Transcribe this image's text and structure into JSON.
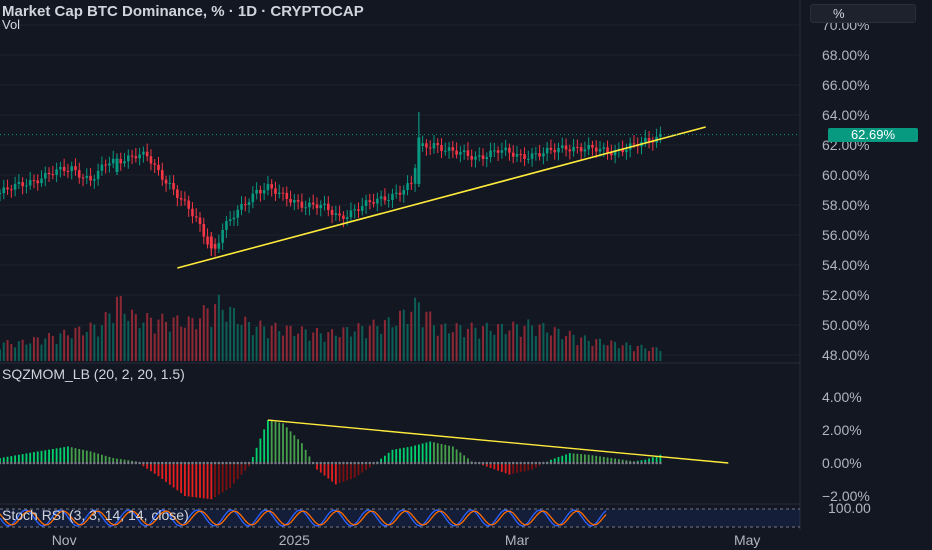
{
  "header": {
    "title": "Market Cap BTC Dominance, % · 1D · CRYPTOCAP",
    "volume_label": "Vol",
    "unit_button": "%"
  },
  "price_axis": {
    "ticks": [
      "70.00%",
      "68.00%",
      "66.00%",
      "64.00%",
      "62.00%",
      "60.00%",
      "58.00%",
      "56.00%",
      "54.00%",
      "52.00%",
      "50.00%",
      "48.00%"
    ],
    "last_price": "62.69%"
  },
  "indicators": {
    "sqzmom_label": "SQZMOM_LB (20, 2, 20, 1.5)",
    "sqzmom_ticks": [
      "4.00%",
      "2.00%",
      "0.00%",
      "−2.00%"
    ],
    "stoch_label": "Stoch RSI (3, 3, 14, 14, close)",
    "stoch_ticks": [
      "100.00"
    ]
  },
  "time_axis": {
    "ticks": [
      "Nov",
      "2025",
      "Mar",
      "May"
    ]
  },
  "colors": {
    "background": "#131722",
    "up": "#089981",
    "down": "#f23645",
    "trendline": "#ffeb3b",
    "momentum_up_strong": "#00e676",
    "momentum_up_weak": "#4caf50",
    "momentum_down_strong": "#ff1f1f",
    "momentum_down_weak": "#880e0e",
    "stoch_k": "#2962ff",
    "stoch_d": "#ff6d00"
  },
  "chart_data": {
    "type": "candlestick",
    "title": "Market Cap BTC Dominance, % · 1D · CRYPTOCAP",
    "ylim": [
      48,
      70
    ],
    "last_value": 62.69,
    "x_range": [
      "2024-10-15",
      "2025-05-15"
    ],
    "x_ticks": [
      "Nov",
      "2025",
      "Mar",
      "May"
    ],
    "close_path": [
      {
        "x": "2024-10-15",
        "y": 58.8
      },
      {
        "x": "2024-10-22",
        "y": 59.5
      },
      {
        "x": "2024-10-29",
        "y": 60.1
      },
      {
        "x": "2024-11-03",
        "y": 60.5
      },
      {
        "x": "2024-11-08",
        "y": 59.6
      },
      {
        "x": "2024-11-13",
        "y": 60.9
      },
      {
        "x": "2024-11-20",
        "y": 61.3
      },
      {
        "x": "2024-11-23",
        "y": 61.2
      },
      {
        "x": "2024-11-26",
        "y": 60.2
      },
      {
        "x": "2024-11-29",
        "y": 59.4
      },
      {
        "x": "2024-12-03",
        "y": 58.0
      },
      {
        "x": "2024-12-06",
        "y": 57.0
      },
      {
        "x": "2024-12-09",
        "y": 55.6
      },
      {
        "x": "2024-12-11",
        "y": 55.1
      },
      {
        "x": "2024-12-13",
        "y": 56.4
      },
      {
        "x": "2024-12-18",
        "y": 57.8
      },
      {
        "x": "2024-12-22",
        "y": 59.0
      },
      {
        "x": "2024-12-25",
        "y": 59.2
      },
      {
        "x": "2024-12-29",
        "y": 58.5
      },
      {
        "x": "2025-01-03",
        "y": 58.1
      },
      {
        "x": "2025-01-08",
        "y": 57.9
      },
      {
        "x": "2025-01-13",
        "y": 57.2
      },
      {
        "x": "2025-01-18",
        "y": 57.8
      },
      {
        "x": "2025-01-23",
        "y": 58.3
      },
      {
        "x": "2025-01-28",
        "y": 58.8
      },
      {
        "x": "2025-02-01",
        "y": 59.3
      },
      {
        "x": "2025-02-03",
        "y": 61.8
      },
      {
        "x": "2025-02-07",
        "y": 62.1
      },
      {
        "x": "2025-02-12",
        "y": 61.5
      },
      {
        "x": "2025-02-18",
        "y": 61.2
      },
      {
        "x": "2025-02-24",
        "y": 61.6
      },
      {
        "x": "2025-03-02",
        "y": 61.3
      },
      {
        "x": "2025-03-08",
        "y": 61.4
      },
      {
        "x": "2025-03-14",
        "y": 61.9
      },
      {
        "x": "2025-03-20",
        "y": 61.7
      },
      {
        "x": "2025-03-26",
        "y": 61.6
      },
      {
        "x": "2025-04-01",
        "y": 61.9
      },
      {
        "x": "2025-04-05",
        "y": 62.3
      },
      {
        "x": "2025-04-08",
        "y": 62.69
      }
    ],
    "candles": [
      {
        "date": "2024-11-15",
        "open": 60.2,
        "close": 61.1,
        "high": 61.4,
        "low": 60.0
      },
      {
        "date": "2024-12-10",
        "open": 55.9,
        "close": 55.1,
        "high": 56.2,
        "low": 54.6
      },
      {
        "date": "2025-02-03",
        "open": 59.4,
        "close": 62.5,
        "high": 64.2,
        "low": 59.2
      }
    ],
    "trendlines": [
      {
        "from": {
          "x": "2024-12-01",
          "y": 53.8
        },
        "to": {
          "x": "2025-04-20",
          "y": 63.2
        }
      }
    ],
    "volume": [
      {
        "x": "2024-10-20",
        "value": 0.3
      },
      {
        "x": "2024-11-01",
        "value": 0.45
      },
      {
        "x": "2024-11-11",
        "value": 0.6
      },
      {
        "x": "2024-11-15",
        "value": 1.0
      },
      {
        "x": "2024-11-20",
        "value": 0.7
      },
      {
        "x": "2024-12-05",
        "value": 0.65
      },
      {
        "x": "2024-12-09",
        "value": 0.85
      },
      {
        "x": "2024-12-12",
        "value": 0.95
      },
      {
        "x": "2024-12-20",
        "value": 0.6
      },
      {
        "x": "2025-01-10",
        "value": 0.45
      },
      {
        "x": "2025-01-27",
        "value": 0.65
      },
      {
        "x": "2025-02-03",
        "value": 0.95
      },
      {
        "x": "2025-02-08",
        "value": 0.55
      },
      {
        "x": "2025-02-25",
        "value": 0.55
      },
      {
        "x": "2025-03-05",
        "value": 0.6
      },
      {
        "x": "2025-03-20",
        "value": 0.35
      },
      {
        "x": "2025-04-07",
        "value": 0.2
      }
    ],
    "panes": [
      {
        "name": "SQZMOM_LB (20, 2, 20, 1.5)",
        "type": "histogram",
        "ylim": [
          -2,
          4
        ],
        "trendlines": [
          {
            "from": {
              "x": "2024-12-25",
              "y": 2.6
            },
            "to": {
              "x": "2025-04-26",
              "y": 0.0
            }
          }
        ],
        "values": [
          {
            "x": "2024-10-15",
            "y": 0.3
          },
          {
            "x": "2024-10-25",
            "y": 0.7
          },
          {
            "x": "2024-11-02",
            "y": 1.0
          },
          {
            "x": "2024-11-08",
            "y": 0.7
          },
          {
            "x": "2024-11-14",
            "y": 0.3
          },
          {
            "x": "2024-11-20",
            "y": 0.1
          },
          {
            "x": "2024-11-26",
            "y": -0.8
          },
          {
            "x": "2024-12-03",
            "y": -2.0
          },
          {
            "x": "2024-12-10",
            "y": -2.2
          },
          {
            "x": "2024-12-15",
            "y": -1.5
          },
          {
            "x": "2024-12-20",
            "y": -0.2
          },
          {
            "x": "2024-12-25",
            "y": 2.6
          },
          {
            "x": "2024-12-29",
            "y": 2.4
          },
          {
            "x": "2025-01-03",
            "y": 1.2
          },
          {
            "x": "2025-01-07",
            "y": -0.4
          },
          {
            "x": "2025-01-12",
            "y": -1.3
          },
          {
            "x": "2025-01-17",
            "y": -0.9
          },
          {
            "x": "2025-01-22",
            "y": -0.1
          },
          {
            "x": "2025-01-27",
            "y": 0.8
          },
          {
            "x": "2025-02-01",
            "y": 1.0
          },
          {
            "x": "2025-02-06",
            "y": 1.3
          },
          {
            "x": "2025-02-12",
            "y": 1.0
          },
          {
            "x": "2025-02-17",
            "y": 0.1
          },
          {
            "x": "2025-02-22",
            "y": -0.3
          },
          {
            "x": "2025-02-27",
            "y": -0.7
          },
          {
            "x": "2025-03-05",
            "y": -0.4
          },
          {
            "x": "2025-03-10",
            "y": 0.2
          },
          {
            "x": "2025-03-15",
            "y": 0.6
          },
          {
            "x": "2025-03-20",
            "y": 0.5
          },
          {
            "x": "2025-03-26",
            "y": 0.3
          },
          {
            "x": "2025-04-01",
            "y": 0.1
          },
          {
            "x": "2025-04-04",
            "y": 0.2
          },
          {
            "x": "2025-04-08",
            "y": 0.5
          }
        ]
      },
      {
        "name": "Stoch RSI (3, 3, 14, 14, close)",
        "type": "line",
        "ylim": [
          0,
          100
        ],
        "series": []
      }
    ]
  }
}
